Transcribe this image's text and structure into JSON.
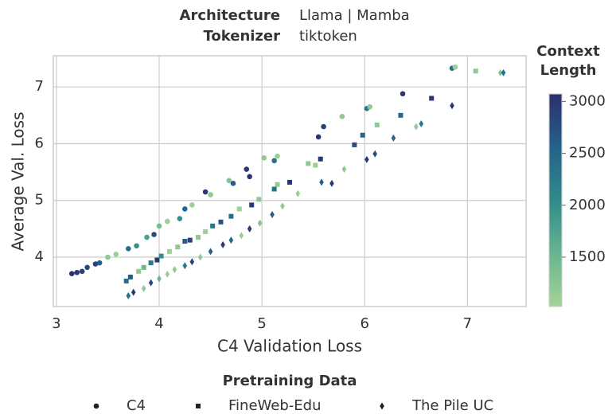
{
  "chart_data": {
    "type": "scatter",
    "header": {
      "rows": [
        [
          "Architecture",
          "Llama | Mamba"
        ],
        [
          "Tokenizer",
          "tiktoken"
        ]
      ]
    },
    "x_label": "C4 Validation Loss",
    "y_label": "Average Val. Loss",
    "xlim": [
      2.97,
      7.57
    ],
    "xticks": [
      3,
      4,
      5,
      6,
      7
    ],
    "ylim": [
      3.13,
      7.55
    ],
    "yticks": [
      4,
      5,
      6,
      7
    ],
    "grid": true,
    "legend_title": "Pretraining Data",
    "colorbar": {
      "title": [
        "Context",
        "Length"
      ],
      "clim": [
        1024,
        3072
      ],
      "cticks": [
        1500,
        2000,
        2500,
        3000
      ],
      "colormap": [
        "#a5d396",
        "#67b590",
        "#2f8b8b",
        "#24628a",
        "#2c2f70"
      ]
    },
    "series": [
      {
        "name": "C4",
        "marker": "circle",
        "x": [
          3.15,
          3.2,
          3.25,
          3.3,
          3.38,
          3.42,
          3.5,
          3.58,
          3.7,
          3.78,
          3.88,
          3.95,
          4.0,
          4.08,
          4.2,
          4.25,
          4.32,
          4.45,
          4.5,
          4.68,
          4.72,
          4.85,
          4.88,
          5.02,
          5.12,
          5.15,
          5.55,
          5.6,
          5.78,
          6.02,
          6.05,
          6.37,
          6.85,
          6.88
        ],
        "values": [
          3.71,
          3.73,
          3.75,
          3.82,
          3.88,
          3.9,
          4.0,
          4.05,
          4.15,
          4.2,
          4.35,
          4.4,
          4.55,
          4.63,
          4.68,
          4.85,
          4.92,
          5.15,
          5.1,
          5.35,
          5.3,
          5.55,
          5.42,
          5.75,
          5.7,
          5.78,
          6.12,
          6.3,
          6.48,
          6.62,
          6.65,
          6.88,
          7.33,
          7.35
        ],
        "c": [
          3072,
          3000,
          2900,
          2800,
          2900,
          2600,
          1200,
          1100,
          2400,
          2000,
          1800,
          2800,
          1400,
          1100,
          2000,
          2500,
          1100,
          3000,
          1200,
          1300,
          2600,
          3000,
          3000,
          1200,
          2400,
          1100,
          3000,
          2900,
          1200,
          2300,
          1200,
          3000,
          2400,
          1100
        ]
      },
      {
        "name": "FineWeb-Edu",
        "marker": "square",
        "x": [
          3.68,
          3.72,
          3.8,
          3.85,
          3.92,
          3.98,
          4.02,
          4.1,
          4.18,
          4.25,
          4.3,
          4.38,
          4.45,
          4.52,
          4.6,
          4.7,
          4.78,
          4.9,
          4.97,
          5.12,
          5.15,
          5.27,
          5.45,
          5.52,
          5.57,
          5.9,
          5.98,
          6.12,
          6.35,
          6.65,
          7.08
        ],
        "values": [
          3.58,
          3.65,
          3.75,
          3.82,
          3.9,
          3.95,
          4.02,
          4.1,
          4.18,
          4.28,
          4.3,
          4.35,
          4.45,
          4.55,
          4.62,
          4.72,
          4.85,
          4.92,
          5.02,
          5.2,
          5.28,
          5.32,
          5.65,
          5.62,
          5.73,
          5.98,
          6.15,
          6.33,
          6.5,
          6.8,
          7.28
        ],
        "c": [
          2400,
          2600,
          1200,
          1500,
          2300,
          3000,
          2000,
          1100,
          1200,
          2600,
          2900,
          1200,
          1100,
          2300,
          2700,
          2400,
          1100,
          3000,
          1200,
          2400,
          1200,
          3000,
          1200,
          1100,
          3000,
          2800,
          2500,
          1200,
          2500,
          3000,
          1200
        ]
      },
      {
        "name": "The Pile UC",
        "marker": "diamond",
        "x": [
          3.7,
          3.75,
          3.85,
          3.92,
          4.0,
          4.08,
          4.15,
          4.25,
          4.32,
          4.4,
          4.5,
          4.62,
          4.7,
          4.8,
          4.88,
          4.98,
          5.1,
          5.2,
          5.35,
          5.58,
          5.68,
          5.8,
          6.02,
          6.1,
          6.28,
          6.5,
          6.55,
          6.85,
          7.32,
          7.35
        ],
        "values": [
          3.32,
          3.38,
          3.45,
          3.55,
          3.62,
          3.7,
          3.78,
          3.85,
          3.92,
          4.0,
          4.1,
          4.22,
          4.3,
          4.38,
          4.5,
          4.6,
          4.75,
          4.9,
          5.12,
          5.32,
          5.3,
          5.55,
          5.72,
          5.82,
          6.1,
          6.3,
          6.35,
          6.67,
          7.25,
          7.25
        ],
        "c": [
          2400,
          3000,
          1200,
          2800,
          1500,
          1100,
          1200,
          2300,
          2900,
          1200,
          2600,
          3000,
          2500,
          1100,
          3000,
          1300,
          2600,
          1200,
          1100,
          2600,
          3000,
          1200,
          3000,
          2800,
          2500,
          1200,
          2300,
          3000,
          1300,
          2400
        ]
      }
    ]
  }
}
